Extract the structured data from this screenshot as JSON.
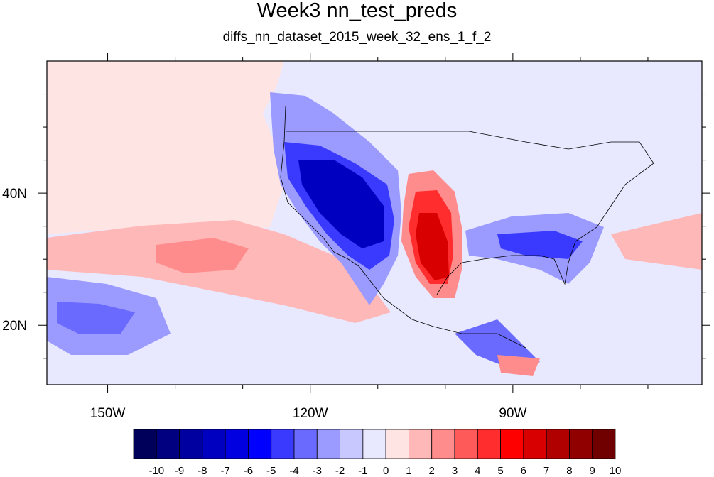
{
  "title": "Week3 nn_test_preds",
  "subtitle": "diffs_nn_dataset_2015_week_32_ens_1_f_2",
  "map": {
    "lon_labels": [
      {
        "lon": -150,
        "text": "150W"
      },
      {
        "lon": -120,
        "text": "120W"
      },
      {
        "lon": -90,
        "text": "90W"
      }
    ],
    "lat_labels": [
      {
        "lat": 40,
        "text": "40N"
      },
      {
        "lat": 20,
        "text": "20N"
      }
    ],
    "lon_range": [
      -159,
      -62
    ],
    "lat_range": [
      11,
      60
    ]
  },
  "colorbar": {
    "labels": [
      "-10",
      "-9",
      "-8",
      "-7",
      "-6",
      "-5",
      "-4",
      "-3",
      "-2",
      "-1",
      "0",
      "1",
      "2",
      "3",
      "4",
      "5",
      "6",
      "7",
      "8",
      "9",
      "10"
    ],
    "colors": [
      "#00005a",
      "#000080",
      "#0000a0",
      "#0000c0",
      "#0000e0",
      "#0000ff",
      "#3a3aff",
      "#6a6aff",
      "#9a9aff",
      "#c8c8ff",
      "#e8e8ff",
      "#ffe4e4",
      "#ffb8b8",
      "#ff8c8c",
      "#ff5a5a",
      "#ff2d2d",
      "#ff0000",
      "#d80000",
      "#b00000",
      "#900000",
      "#700000"
    ]
  }
}
